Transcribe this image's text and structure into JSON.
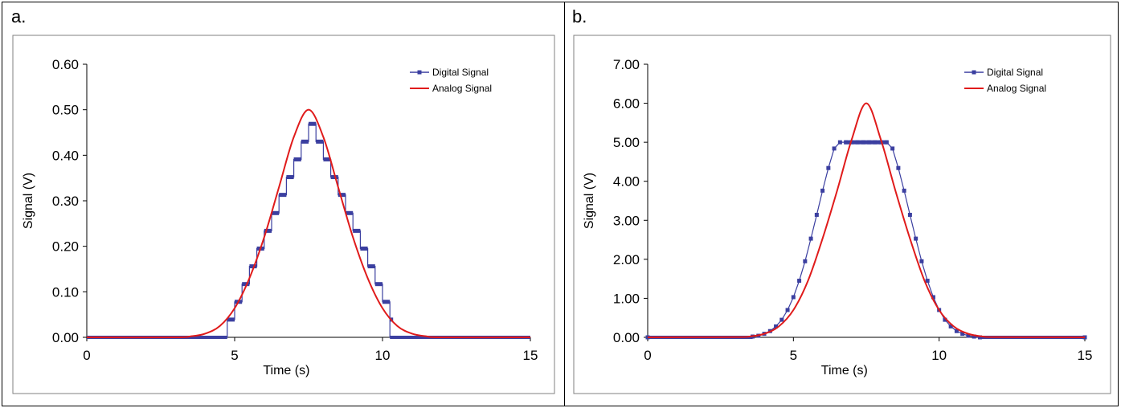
{
  "panels": [
    {
      "label": "a."
    },
    {
      "label": "b."
    }
  ],
  "colors": {
    "digital": "#3b3fa0",
    "analog": "#e01b1b",
    "plot_border": "#808080"
  },
  "chart_data": [
    {
      "type": "line",
      "xlabel": "Time (s)",
      "ylabel": "Signal (V)",
      "xlim": [
        0,
        15
      ],
      "ylim": [
        0,
        0.6
      ],
      "xticks": [
        0,
        5,
        10,
        15
      ],
      "xtick_labels": [
        "0",
        "5",
        "10",
        "15"
      ],
      "yticks": [
        0,
        0.1,
        0.2,
        0.3,
        0.4,
        0.5,
        0.6
      ],
      "ytick_labels": [
        "0.00",
        "0.10",
        "0.20",
        "0.30",
        "0.40",
        "0.50",
        "0.60"
      ],
      "grid": false,
      "legend": "top-right",
      "series": [
        {
          "name": "Digital Signal",
          "style": "step-markers",
          "x": [
            0,
            4.75,
            4.75,
            5.0,
            5.25,
            5.5,
            5.75,
            6.0,
            6.25,
            6.5,
            6.75,
            7.0,
            7.25,
            7.5,
            7.75,
            8.0,
            8.25,
            8.5,
            8.75,
            9.0,
            9.25,
            9.5,
            9.75,
            10.0,
            10.25,
            10.25,
            15
          ],
          "y": [
            0,
            0,
            0.039,
            0.078,
            0.117,
            0.156,
            0.195,
            0.234,
            0.273,
            0.313,
            0.352,
            0.391,
            0.43,
            0.469,
            0.43,
            0.391,
            0.352,
            0.313,
            0.273,
            0.234,
            0.195,
            0.156,
            0.117,
            0.078,
            0.039,
            0,
            0
          ]
        },
        {
          "name": "Analog Signal",
          "style": "smooth",
          "x": [
            0,
            3.0,
            3.5,
            4.0,
            4.5,
            5.0,
            5.5,
            6.0,
            6.5,
            7.0,
            7.5,
            8.0,
            8.5,
            9.0,
            9.5,
            10.0,
            10.5,
            11.0,
            11.5,
            12.0,
            15
          ],
          "y": [
            0,
            0,
            0.002,
            0.008,
            0.025,
            0.064,
            0.13,
            0.22,
            0.33,
            0.44,
            0.5,
            0.44,
            0.33,
            0.22,
            0.13,
            0.064,
            0.025,
            0.008,
            0.002,
            0,
            0
          ]
        }
      ]
    },
    {
      "type": "line",
      "xlabel": "Time (s)",
      "ylabel": "Signal (V)",
      "xlim": [
        0,
        15
      ],
      "ylim": [
        0,
        7
      ],
      "xticks": [
        0,
        5,
        10,
        15
      ],
      "xtick_labels": [
        "0",
        "5",
        "10",
        "15"
      ],
      "yticks": [
        0,
        1,
        2,
        3,
        4,
        5,
        6,
        7
      ],
      "ytick_labels": [
        "0.00",
        "1.00",
        "2.00",
        "3.00",
        "4.00",
        "5.00",
        "6.00",
        "7.00"
      ],
      "grid": false,
      "legend": "top-right",
      "series": [
        {
          "name": "Digital Signal",
          "style": "markers",
          "x": [
            0,
            3.6,
            3.8,
            4.0,
            4.2,
            4.4,
            4.6,
            4.8,
            5.0,
            5.2,
            5.4,
            5.6,
            5.8,
            6.0,
            6.2,
            6.4,
            6.6,
            6.8,
            7.0,
            7.2,
            7.4,
            7.6,
            7.8,
            8.0,
            8.2,
            8.4,
            8.6,
            8.8,
            9.0,
            9.2,
            9.4,
            9.6,
            9.8,
            10.0,
            10.2,
            10.4,
            10.6,
            10.8,
            11.0,
            11.2,
            11.4,
            15
          ],
          "y": [
            0,
            0.02,
            0.04,
            0.09,
            0.16,
            0.28,
            0.45,
            0.7,
            1.03,
            1.45,
            1.95,
            2.53,
            3.14,
            3.76,
            4.34,
            4.84,
            5.0,
            5.0,
            5.0,
            5.0,
            5.0,
            5.0,
            5.0,
            5.0,
            5.0,
            4.84,
            4.34,
            3.76,
            3.14,
            2.53,
            1.95,
            1.45,
            1.03,
            0.7,
            0.45,
            0.28,
            0.16,
            0.09,
            0.04,
            0.02,
            0,
            0
          ]
        },
        {
          "name": "Analog Signal",
          "style": "smooth",
          "x": [
            0,
            3.0,
            3.5,
            4.0,
            4.5,
            5.0,
            5.5,
            6.0,
            6.5,
            7.0,
            7.5,
            8.0,
            8.5,
            9.0,
            9.5,
            10.0,
            10.5,
            11.0,
            11.5,
            12.0,
            15
          ],
          "y": [
            0,
            0.005,
            0.02,
            0.09,
            0.28,
            0.7,
            1.45,
            2.53,
            3.76,
            5.07,
            6.0,
            5.07,
            3.76,
            2.53,
            1.45,
            0.7,
            0.28,
            0.09,
            0.02,
            0.005,
            0
          ]
        }
      ]
    }
  ]
}
